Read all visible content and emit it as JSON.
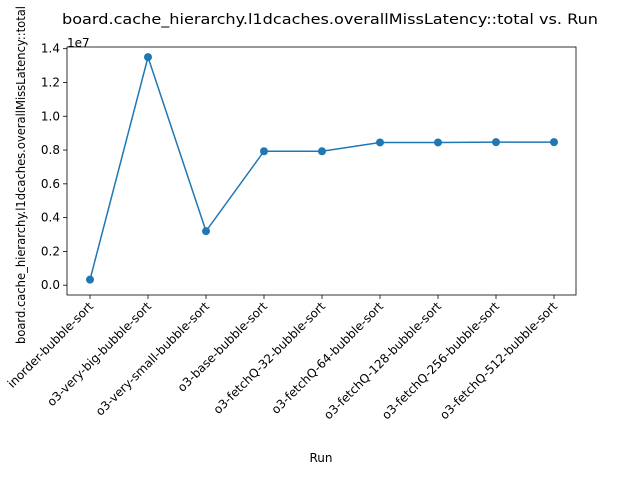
{
  "chart_data": {
    "type": "line",
    "title": "board.cache_hierarchy.l1dcaches.overallMissLatency::total vs. Run",
    "xlabel": "Run",
    "ylabel": "board.cache_hierarchy.l1dcaches.overallMissLatency::total",
    "y_offset_label": "1e7",
    "categories": [
      "inorder-bubble-sort",
      "o3-very-big-bubble-sort",
      "o3-very-small-bubble-sort",
      "o3-base-bubble-sort",
      "o3-fetchQ-32-bubble-sort",
      "o3-fetchQ-64-bubble-sort",
      "o3-fetchQ-128-bubble-sort",
      "o3-fetchQ-256-bubble-sort",
      "o3-fetchQ-512-bubble-sort"
    ],
    "series": [
      {
        "values": [
          330000,
          13500000,
          3200000,
          7930000,
          7930000,
          8450000,
          8450000,
          8470000,
          8470000
        ]
      }
    ],
    "y_ticks": [
      "0.0",
      "0.2",
      "0.4",
      "0.6",
      "0.8",
      "1.0",
      "1.2",
      "1.4"
    ],
    "y_tick_values": [
      0,
      2000000,
      4000000,
      6000000,
      8000000,
      10000000,
      12000000,
      14000000
    ],
    "ylim": [
      -580000,
      14100000
    ],
    "grid": false,
    "color": "#1f77b4"
  }
}
